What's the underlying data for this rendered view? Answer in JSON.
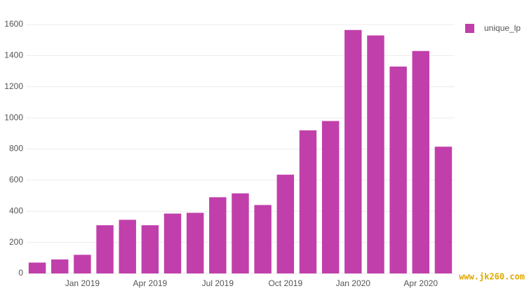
{
  "chart_data": {
    "type": "bar",
    "categories": [
      null,
      null,
      "Jan 2019",
      null,
      null,
      "Apr 2019",
      null,
      null,
      "Jul 2019",
      null,
      null,
      "Oct 2019",
      null,
      null,
      "Jan 2020",
      null,
      null,
      "Apr 2020",
      null
    ],
    "series": [
      {
        "name": "unique_lp",
        "color": "#c13fab",
        "values": [
          70,
          90,
          120,
          310,
          345,
          310,
          385,
          390,
          490,
          515,
          440,
          635,
          920,
          980,
          1565,
          1530,
          1330,
          1430,
          815
        ]
      }
    ],
    "ylim": [
      0,
      1600
    ],
    "yticks": [
      0,
      200,
      400,
      600,
      800,
      1000,
      1200,
      1400,
      1600
    ],
    "grid": true,
    "legend": "top-right",
    "watermark": "www.jk260.com"
  }
}
